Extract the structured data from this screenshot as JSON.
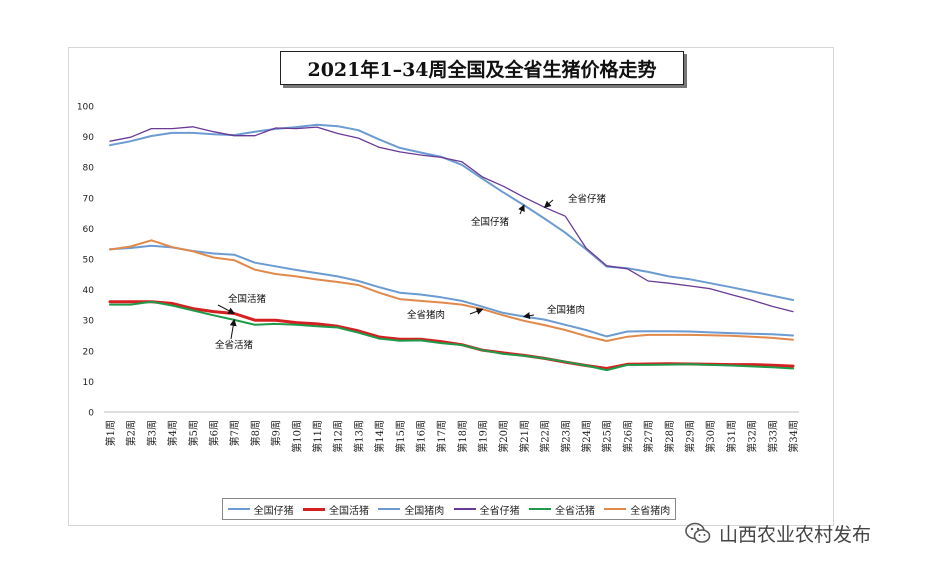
{
  "watermark": {
    "text": "山西农业农村发布",
    "icon": "wechat-icon"
  },
  "chart_data": {
    "type": "line",
    "title": "2021年1–34周全国及全省生猪价格走势",
    "xlabel": "",
    "ylabel": "",
    "ylim": [
      0,
      100
    ],
    "yticks": [
      0,
      10,
      20,
      30,
      40,
      50,
      60,
      70,
      80,
      90,
      100
    ],
    "categories": [
      "第1周",
      "第2周",
      "第3周",
      "第4周",
      "第5周",
      "第6周",
      "第7周",
      "第8周",
      "第9周",
      "第10周",
      "第11周",
      "第12周",
      "第13周",
      "第14周",
      "第15周",
      "第16周",
      "第17周",
      "第18周",
      "第19周",
      "第20周",
      "第21周",
      "第22周",
      "第23周",
      "第24周",
      "第25周",
      "第26周",
      "第27周",
      "第28周",
      "第29周",
      "第30周",
      "第31周",
      "第32周",
      "第33周",
      "第34周"
    ],
    "series": [
      {
        "name": "全国仔猪",
        "color": "#6b9bd1",
        "width": 2,
        "values": [
          87.2,
          88.5,
          90.2,
          91.2,
          91.2,
          90.8,
          90.5,
          91.6,
          92.5,
          93.1,
          93.9,
          93.4,
          92.1,
          89.1,
          86.3,
          84.8,
          83.4,
          80.8,
          76.2,
          71.8,
          67.6,
          63.2,
          58.6,
          53.2,
          47.5,
          47.0,
          45.8,
          44.3,
          43.4,
          42.1,
          40.8,
          39.4,
          38.0,
          36.6
        ]
      },
      {
        "name": "全国活猪",
        "color": "#d42020",
        "width": 3,
        "values": [
          36.0,
          36.0,
          36.0,
          35.5,
          33.8,
          32.8,
          32.2,
          30.0,
          30.0,
          29.2,
          28.8,
          28.0,
          26.5,
          24.5,
          23.8,
          23.8,
          23.0,
          22.0,
          20.2,
          19.3,
          18.5,
          17.5,
          16.3,
          15.2,
          14.2,
          15.6,
          15.7,
          15.8,
          15.7,
          15.6,
          15.5,
          15.5,
          15.3,
          15.0
        ]
      },
      {
        "name": "全国猪肉",
        "color": "#6b9bd1",
        "width": 2,
        "values": [
          53.2,
          53.6,
          54.3,
          53.8,
          52.6,
          51.8,
          51.4,
          48.8,
          47.6,
          46.4,
          45.4,
          44.3,
          42.8,
          40.8,
          39.0,
          38.4,
          37.5,
          36.3,
          34.4,
          32.4,
          31.2,
          30.2,
          28.5,
          26.8,
          24.7,
          26.3,
          26.4,
          26.4,
          26.3,
          26.0,
          25.8,
          25.6,
          25.4,
          25.0
        ]
      },
      {
        "name": "全省仔猪",
        "color": "#6a3a96",
        "width": 1.3,
        "values": [
          88.5,
          89.8,
          92.6,
          92.6,
          93.2,
          91.6,
          90.3,
          90.3,
          92.8,
          92.6,
          93.1,
          91.0,
          89.5,
          86.5,
          85.0,
          84.0,
          83.2,
          81.8,
          76.8,
          73.8,
          70.2,
          66.9,
          64.0,
          53.6,
          47.8,
          46.8,
          42.8,
          42.1,
          41.2,
          40.3,
          38.4,
          36.6,
          34.5,
          32.8
        ]
      },
      {
        "name": "全省活猪",
        "color": "#1f9a4a",
        "width": 2,
        "values": [
          35.1,
          35.1,
          36.0,
          34.8,
          33.2,
          31.6,
          30.1,
          28.5,
          28.8,
          28.5,
          28.0,
          27.6,
          25.9,
          24.0,
          23.3,
          23.4,
          22.5,
          21.9,
          20.2,
          19.0,
          18.4,
          17.5,
          16.4,
          15.2,
          13.7,
          15.4,
          15.4,
          15.5,
          15.6,
          15.4,
          15.2,
          14.9,
          14.6,
          14.2
        ]
      },
      {
        "name": "全省猪肉",
        "color": "#e0894b",
        "width": 2,
        "values": [
          53.1,
          54.1,
          56.1,
          53.9,
          52.5,
          50.5,
          49.6,
          46.5,
          45.1,
          44.3,
          43.3,
          42.5,
          41.5,
          39.0,
          36.9,
          36.3,
          35.8,
          35.1,
          33.6,
          31.6,
          29.8,
          28.4,
          26.8,
          24.8,
          23.2,
          24.6,
          25.2,
          25.2,
          25.2,
          25.1,
          24.9,
          24.6,
          24.2,
          23.6
        ]
      }
    ],
    "annotations": [
      {
        "text": "全国仔猪",
        "target_series": 0,
        "target_index": 20
      },
      {
        "text": "全省仔猪",
        "target_series": 3,
        "target_index": 21
      },
      {
        "text": "全国猪肉",
        "target_series": 2,
        "target_index": 20
      },
      {
        "text": "全省猪肉",
        "target_series": 5,
        "target_index": 18
      },
      {
        "text": "全国活猪",
        "target_series": 1,
        "target_index": 6
      },
      {
        "text": "全省活猪",
        "target_series": 4,
        "target_index": 6
      }
    ],
    "legend_position": "bottom"
  }
}
